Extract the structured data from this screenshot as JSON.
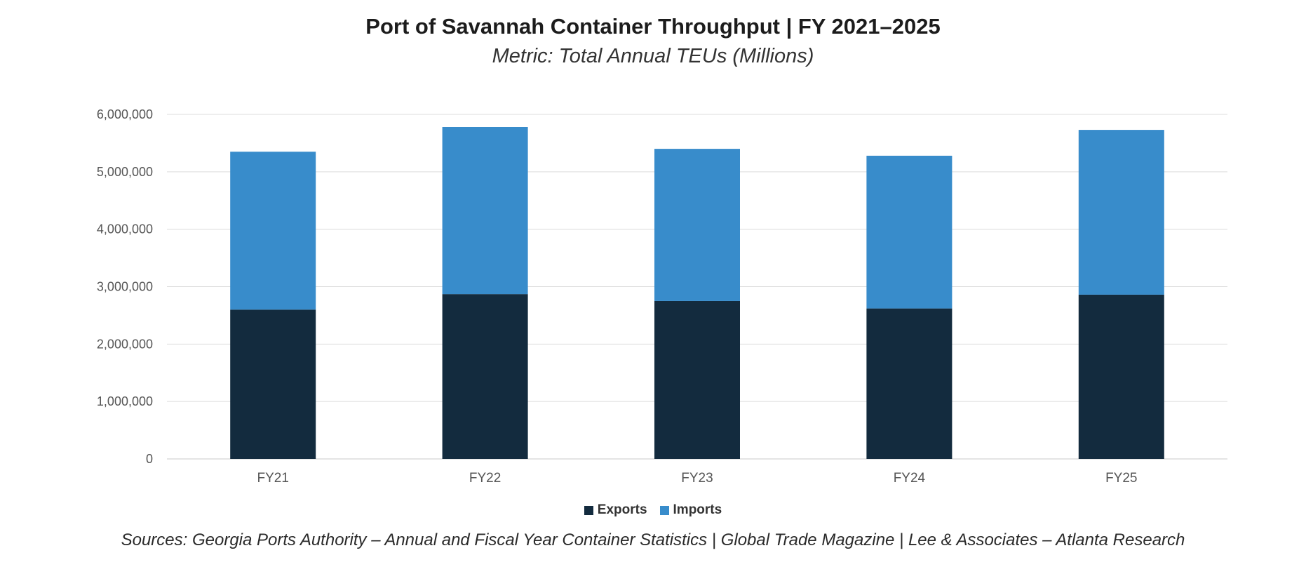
{
  "chart_data": {
    "type": "bar",
    "stacked": true,
    "title": "Port of Savannah Container Throughput | FY 2021–2025",
    "subtitle": "Metric: Total Annual TEUs (Millions)",
    "categories": [
      "FY21",
      "FY22",
      "FY23",
      "FY24",
      "FY25"
    ],
    "series": [
      {
        "name": "Exports",
        "color": "#132b3e",
        "values": [
          2600000,
          2870000,
          2750000,
          2620000,
          2860000
        ]
      },
      {
        "name": "Imports",
        "color": "#388ccb",
        "values": [
          2750000,
          2910000,
          2650000,
          2660000,
          2870000
        ]
      }
    ],
    "ylim": [
      0,
      6000000
    ],
    "yticks": [
      "0",
      "1,000,000",
      "2,000,000",
      "3,000,000",
      "4,000,000",
      "5,000,000",
      "6,000,000"
    ],
    "grid": true,
    "legend": "bottom-center",
    "source": "Sources: Georgia Ports Authority – Annual and Fiscal Year Container Statistics | Global Trade Magazine | Lee & Associates – Atlanta Research"
  }
}
